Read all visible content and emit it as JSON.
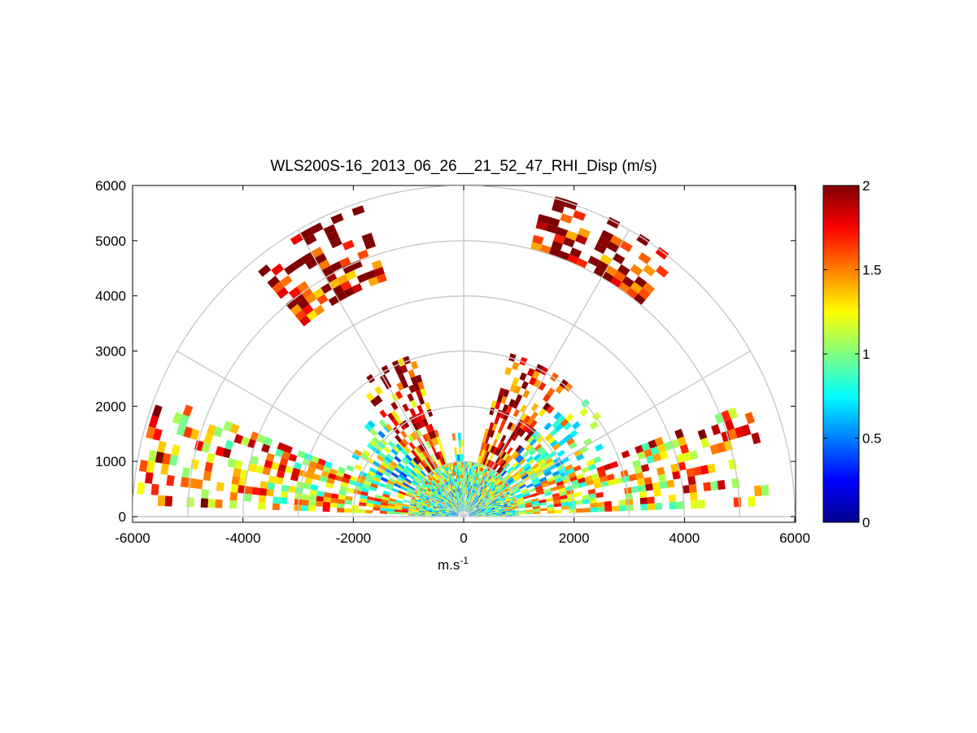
{
  "chart_data": {
    "type": "heatmap",
    "subtype": "polar-rhi-sector",
    "title": "WLS200S-16_2013_06_26__21_52_47_RHI_Disp (m/s)",
    "xlabel_base": "m.s",
    "xlabel_sup": "-1",
    "ylabel": "",
    "xlim": [
      -6000,
      6000
    ],
    "ylim": [
      0,
      6000
    ],
    "x_ticks": [
      -6000,
      -4000,
      -2000,
      0,
      2000,
      4000,
      6000
    ],
    "y_ticks": [
      0,
      1000,
      2000,
      3000,
      4000,
      5000,
      6000
    ],
    "x_tick_labels": [
      "-6000",
      "-4000",
      "-2000",
      "0",
      "2000",
      "4000",
      "6000"
    ],
    "y_tick_labels": [
      "0",
      "1000",
      "2000",
      "3000",
      "4000",
      "5000",
      "6000"
    ],
    "grid": "polar",
    "polar_rings": [
      1000,
      2000,
      3000,
      4000,
      5000,
      6000
    ],
    "polar_spokes_deg": [
      0,
      30,
      60,
      90,
      120,
      150,
      180
    ],
    "colorbar": {
      "colormap": "jet",
      "range": [
        0,
        2
      ],
      "ticks": [
        0,
        0.5,
        1,
        1.5,
        2
      ],
      "tick_labels": [
        "0",
        "0.5",
        "1",
        "1.5",
        "2"
      ],
      "placement": "right"
    },
    "regions": [
      {
        "az": [
          0,
          30
        ],
        "r": [
          100,
          1000
        ],
        "value": 0.75
      },
      {
        "az": [
          150,
          180
        ],
        "r": [
          100,
          1000
        ],
        "value": 0.75
      },
      {
        "az": [
          30,
          150
        ],
        "r": [
          100,
          1000
        ],
        "value": 0.8
      },
      {
        "az": [
          2,
          22
        ],
        "r": [
          1000,
          5500
        ],
        "value": 1.2
      },
      {
        "az": [
          158,
          178
        ],
        "r": [
          1000,
          5900
        ],
        "value": 1.2
      },
      {
        "az": [
          22,
          50
        ],
        "r": [
          1000,
          3000
        ],
        "value": 0.9
      },
      {
        "az": [
          130,
          158
        ],
        "r": [
          1000,
          2500
        ],
        "value": 0.8
      },
      {
        "az": [
          50,
          75
        ],
        "r": [
          1000,
          3000
        ],
        "value": 1.6
      },
      {
        "az": [
          107,
          130
        ],
        "r": [
          1000,
          3000
        ],
        "value": 1.5
      },
      {
        "az": [
          90,
          98
        ],
        "r": [
          1000,
          1500
        ],
        "value": 0.8
      },
      {
        "az": [
          108,
          130
        ],
        "r": [
          4500,
          5900
        ],
        "value": 1.8
      },
      {
        "az": [
          50,
          75
        ],
        "r": [
          5000,
          6000
        ],
        "value": 1.8
      }
    ]
  }
}
